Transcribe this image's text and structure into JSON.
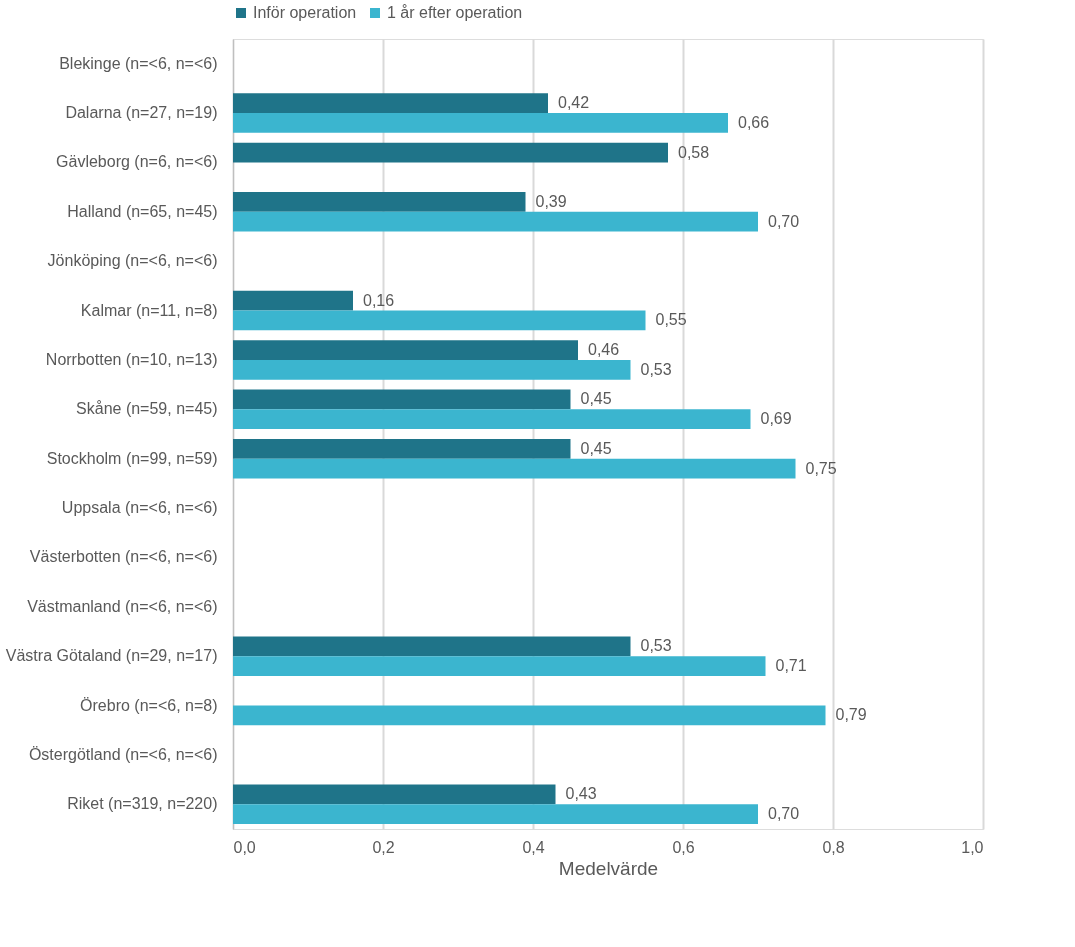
{
  "chart_data": {
    "type": "bar",
    "orientation": "horizontal",
    "xlabel": "Medelvärde",
    "legend": "top",
    "grid": "x",
    "categories": [
      "Blekinge (n=<6, n=<6)",
      "Dalarna (n=27, n=19)",
      "Gävleborg (n=6, n=<6)",
      "Halland (n=65, n=45)",
      "Jönköping (n=<6, n=<6)",
      "Kalmar (n=11, n=8)",
      "Norrbotten (n=10, n=13)",
      "Skåne (n=59, n=45)",
      "Stockholm (n=99, n=59)",
      "Uppsala (n=<6, n=<6)",
      "Västerbotten (n=<6, n=<6)",
      "Västmanland (n=<6, n=<6)",
      "Västra Götaland (n=29, n=17)",
      "Örebro (n=<6, n=8)",
      "Östergötland (n=<6, n=<6)",
      "Riket (n=319, n=220)"
    ],
    "series": [
      {
        "name": "Inför operation",
        "color": "#1f7489",
        "values": [
          null,
          0.42,
          0.58,
          0.39,
          null,
          0.16,
          0.46,
          0.45,
          0.45,
          null,
          null,
          null,
          0.53,
          null,
          null,
          0.43
        ],
        "value_labels": [
          null,
          "0,42",
          "0,58",
          "0,39",
          null,
          "0,16",
          "0,46",
          "0,45",
          "0,45",
          null,
          null,
          null,
          "0,53",
          null,
          null,
          "0,43"
        ]
      },
      {
        "name": "1 år efter operation",
        "color": "#3bb5cf",
        "values": [
          null,
          0.66,
          null,
          0.7,
          null,
          0.55,
          0.53,
          0.69,
          0.75,
          null,
          null,
          null,
          0.71,
          0.79,
          null,
          0.7
        ],
        "value_labels": [
          null,
          "0,66",
          null,
          "0,70",
          null,
          "0,55",
          "0,53",
          "0,69",
          "0,75",
          null,
          null,
          null,
          "0,71",
          "0,79",
          null,
          "0,70"
        ]
      }
    ],
    "xlim": [
      0,
      1
    ],
    "xticks": [
      {
        "value": 0,
        "label": "0,0"
      },
      {
        "value": 0.2,
        "label": "0,2"
      },
      {
        "value": 0.4,
        "label": "0,4"
      },
      {
        "value": 0.6,
        "label": "0,6"
      },
      {
        "value": 0.8,
        "label": "0,8"
      },
      {
        "value": 1,
        "label": "1,0"
      }
    ]
  }
}
